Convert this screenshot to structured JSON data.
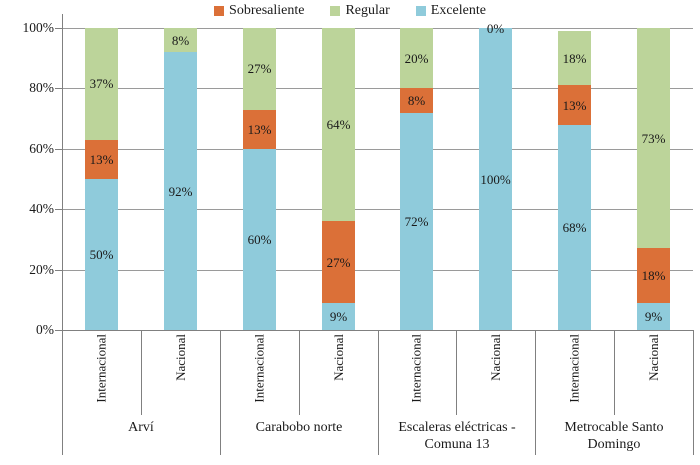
{
  "colors": {
    "sobresaliente": "#DB7038",
    "regular": "#BCD49A",
    "excelente": "#8FCBDB",
    "gridline": "#9A9A9A",
    "axis": "#808080",
    "text": "#1A1A1A"
  },
  "chart_data": {
    "type": "bar",
    "variant": "100-percent-stacked-column",
    "grid": true,
    "legend_position": "top",
    "ylim": [
      0,
      100
    ],
    "yticks": [
      {
        "value": 0,
        "label": "0%"
      },
      {
        "value": 20,
        "label": "20%"
      },
      {
        "value": 40,
        "label": "40%"
      },
      {
        "value": 60,
        "label": "60%"
      },
      {
        "value": 80,
        "label": "80%"
      },
      {
        "value": 100,
        "label": "100%"
      }
    ],
    "legend": [
      {
        "series": "sobresaliente",
        "label": "Sobresaliente"
      },
      {
        "series": "regular",
        "label": "Regular"
      },
      {
        "series": "excelente",
        "label": "Excelente"
      }
    ],
    "groups": [
      {
        "label": "Arví",
        "bars": [
          {
            "label": "Internacional",
            "segments": [
              {
                "series": "excelente",
                "value": 50,
                "label": "50%"
              },
              {
                "series": "sobresaliente",
                "value": 13,
                "label": "13%"
              },
              {
                "series": "regular",
                "value": 37,
                "label": "37%"
              }
            ]
          },
          {
            "label": "Nacional",
            "segments": [
              {
                "series": "excelente",
                "value": 92,
                "label": "92%"
              },
              {
                "series": "regular",
                "value": 8,
                "label": "8%"
              }
            ]
          }
        ]
      },
      {
        "label": "Carabobo norte",
        "bars": [
          {
            "label": "Internacional",
            "segments": [
              {
                "series": "excelente",
                "value": 60,
                "label": "60%"
              },
              {
                "series": "sobresaliente",
                "value": 13,
                "label": "13%"
              },
              {
                "series": "regular",
                "value": 27,
                "label": "27%"
              }
            ]
          },
          {
            "label": "Nacional",
            "segments": [
              {
                "series": "excelente",
                "value": 9,
                "label": "9%"
              },
              {
                "series": "sobresaliente",
                "value": 27,
                "label": "27%"
              },
              {
                "series": "regular",
                "value": 64,
                "label": "64%"
              }
            ]
          }
        ]
      },
      {
        "label": "Escaleras eléctricas - Comuna 13",
        "bars": [
          {
            "label": "Internacional",
            "segments": [
              {
                "series": "excelente",
                "value": 72,
                "label": "72%"
              },
              {
                "series": "sobresaliente",
                "value": 8,
                "label": "8%"
              },
              {
                "series": "regular",
                "value": 20,
                "label": "20%"
              }
            ]
          },
          {
            "label": "Nacional",
            "segments": [
              {
                "series": "excelente",
                "value": 100,
                "label": "100%"
              },
              {
                "series": "regular",
                "value": 0,
                "label": "0%"
              }
            ]
          }
        ]
      },
      {
        "label": "Metrocable Santo Domingo",
        "bars": [
          {
            "label": "Internacional",
            "segments": [
              {
                "series": "excelente",
                "value": 68,
                "label": "68%"
              },
              {
                "series": "sobresaliente",
                "value": 13,
                "label": "13%"
              },
              {
                "series": "regular",
                "value": 18,
                "label": "18%"
              }
            ]
          },
          {
            "label": "Nacional",
            "segments": [
              {
                "series": "excelente",
                "value": 9,
                "label": "9%"
              },
              {
                "series": "sobresaliente",
                "value": 18,
                "label": "18%"
              },
              {
                "series": "regular",
                "value": 73,
                "label": "73%"
              }
            ]
          }
        ]
      }
    ]
  }
}
